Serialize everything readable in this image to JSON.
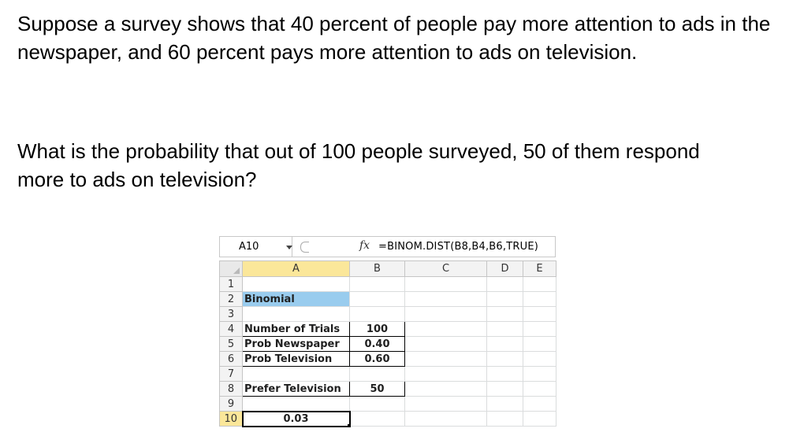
{
  "question": {
    "paragraph1": "Suppose a survey shows that 40 percent of people pay more attention to ads in the newspaper, and 60 percent pays more attention to ads on television.",
    "paragraph2": "What is the probability that out of 100 people surveyed, 50 of them respond more to ads on television?"
  },
  "spreadsheet": {
    "name_box": "A10",
    "fx_label": "fx",
    "formula": "=BINOM.DIST(B8,B4,B6,TRUE)",
    "columns": [
      "A",
      "B",
      "C",
      "D",
      "E"
    ],
    "rows": [
      {
        "num": "1",
        "a": "",
        "b": ""
      },
      {
        "num": "2",
        "a": "Binomial",
        "b": ""
      },
      {
        "num": "3",
        "a": "",
        "b": ""
      },
      {
        "num": "4",
        "a": "Number of Trials",
        "b": "100"
      },
      {
        "num": "5",
        "a": "Prob Newspaper",
        "b": "0.40"
      },
      {
        "num": "6",
        "a": "Prob Television",
        "b": "0.60"
      },
      {
        "num": "7",
        "a": "",
        "b": ""
      },
      {
        "num": "8",
        "a": "Prefer Television",
        "b": "50"
      },
      {
        "num": "9",
        "a": "",
        "b": ""
      },
      {
        "num": "10",
        "a": "0.03",
        "b": ""
      }
    ],
    "highlight_color": "#99ccee",
    "active_header_color": "#fbe79a"
  }
}
